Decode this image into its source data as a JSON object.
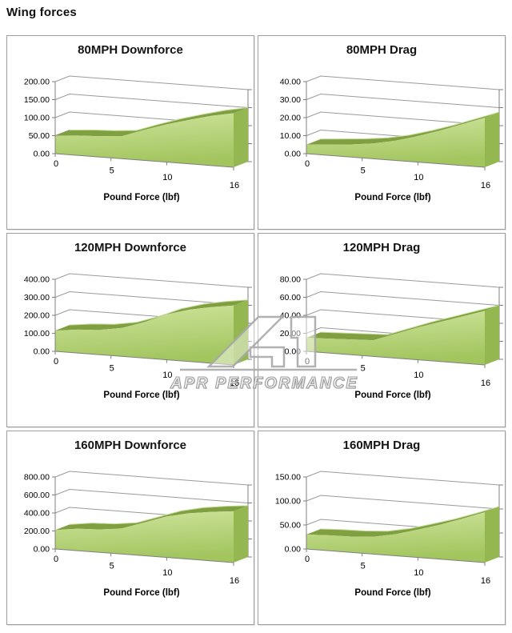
{
  "page_title": "Wing forces",
  "watermark": {
    "text": "APR PERFORMANCE"
  },
  "colors": {
    "area_top": "#7f9f41",
    "area_top_highlight": "#c6dc98",
    "area_side": "#94b751",
    "area_face_light": "#cfe49d",
    "area_face_dark": "#a2c55e",
    "gridline": "#9a9a9a",
    "axis": "#7f7f7f",
    "text": "#000000",
    "panel_border": "#9e9e9e",
    "watermark_gray": "#a8a8a8"
  },
  "chart_data": [
    {
      "type": "area",
      "title": "80MPH Downforce",
      "xlabel": "Pound Force (lbf)",
      "x": [
        0,
        2,
        4,
        6,
        8,
        10,
        12,
        14,
        16
      ],
      "values": [
        50,
        55,
        58,
        63,
        85,
        105,
        122,
        138,
        150
      ],
      "xticks": [
        0,
        5,
        10,
        16
      ],
      "yticks": [
        0,
        50,
        100,
        150,
        200
      ],
      "xlim": [
        0,
        16
      ],
      "ylim": [
        0,
        200
      ],
      "grid": true,
      "legend": "none"
    },
    {
      "type": "area",
      "title": "80MPH Drag",
      "xlabel": "Pound Force (lbf)",
      "x": [
        0,
        2,
        4,
        6,
        8,
        10,
        12,
        14,
        16
      ],
      "values": [
        5,
        6,
        7,
        8.5,
        11,
        14.5,
        18.5,
        23,
        27.5
      ],
      "xticks": [
        0,
        5,
        10,
        16
      ],
      "yticks": [
        0,
        10,
        20,
        30,
        40
      ],
      "xlim": [
        0,
        16
      ],
      "ylim": [
        0,
        40
      ],
      "grid": true,
      "legend": "none"
    },
    {
      "type": "area",
      "title": "120MPH Downforce",
      "xlabel": "Pound Force (lbf)",
      "x": [
        0,
        2,
        4,
        6,
        8,
        10,
        12,
        14,
        16
      ],
      "values": [
        115,
        130,
        138,
        158,
        200,
        252,
        288,
        312,
        330
      ],
      "xticks": [
        0,
        5,
        10,
        16
      ],
      "yticks": [
        0,
        100,
        200,
        300,
        400
      ],
      "xlim": [
        0,
        16
      ],
      "ylim": [
        0,
        400
      ],
      "grid": true,
      "legend": "none"
    },
    {
      "type": "area",
      "title": "120MPH Drag",
      "xlabel": "Pound Force (lbf)",
      "x": [
        0,
        2,
        4,
        6,
        8,
        10,
        12,
        14,
        16
      ],
      "values": [
        15,
        16,
        17,
        18,
        27,
        36,
        44,
        52,
        60
      ],
      "xticks": [
        0,
        5,
        10,
        16
      ],
      "yticks": [
        0,
        20,
        40,
        60,
        80
      ],
      "xlim": [
        0,
        16
      ],
      "ylim": [
        0,
        80
      ],
      "grid": true,
      "legend": "none"
    },
    {
      "type": "area",
      "title": "160MPH Downforce",
      "xlabel": "Pound Force (lbf)",
      "x": [
        0,
        2,
        4,
        6,
        8,
        10,
        12,
        14,
        16
      ],
      "values": [
        210,
        245,
        255,
        285,
        370,
        455,
        510,
        545,
        570
      ],
      "xticks": [
        0,
        5,
        10,
        16
      ],
      "yticks": [
        0,
        200,
        400,
        600,
        800
      ],
      "xlim": [
        0,
        16
      ],
      "ylim": [
        0,
        800
      ],
      "grid": true,
      "legend": "none"
    },
    {
      "type": "area",
      "title": "160MPH Drag",
      "xlabel": "Pound Force (lbf)",
      "x": [
        0,
        2,
        4,
        6,
        8,
        10,
        12,
        14,
        16
      ],
      "values": [
        30,
        32,
        33,
        36,
        45,
        58,
        72,
        88,
        105
      ],
      "xticks": [
        0,
        5,
        10,
        16
      ],
      "yticks": [
        0,
        50,
        100,
        150
      ],
      "xlim": [
        0,
        16
      ],
      "ylim": [
        0,
        150
      ],
      "grid": true,
      "legend": "none"
    }
  ]
}
